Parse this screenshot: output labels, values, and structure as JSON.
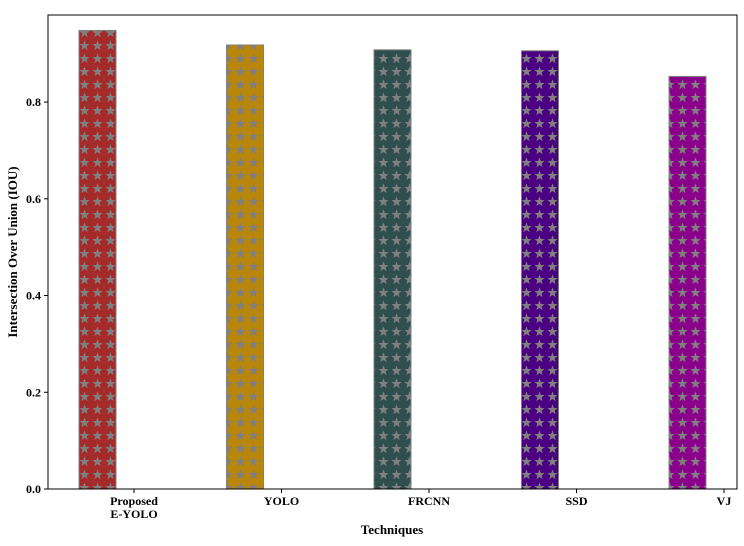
{
  "chart_data": {
    "type": "bar",
    "categories": [
      "Proposed\nE-YOLO",
      "YOLO",
      "FRCNN",
      "SSD",
      "VJ"
    ],
    "values": [
      0.948,
      0.918,
      0.908,
      0.906,
      0.853
    ],
    "colors": [
      "#a52a2a",
      "#b8860b",
      "#2f4f4f",
      "#4b0082",
      "#8b008b"
    ],
    "hatch": "star",
    "hatch_color": "#808080",
    "xlabel": "Techniques",
    "ylabel": "Intersection Over Union (IOU)",
    "ylim": [
      0,
      0.98
    ],
    "yticks": [
      0.0,
      0.2,
      0.4,
      0.6,
      0.8
    ],
    "ytick_labels": [
      "0.0",
      "0.2",
      "0.4",
      "0.6",
      "0.8"
    ],
    "grid": false,
    "legend": "none"
  }
}
